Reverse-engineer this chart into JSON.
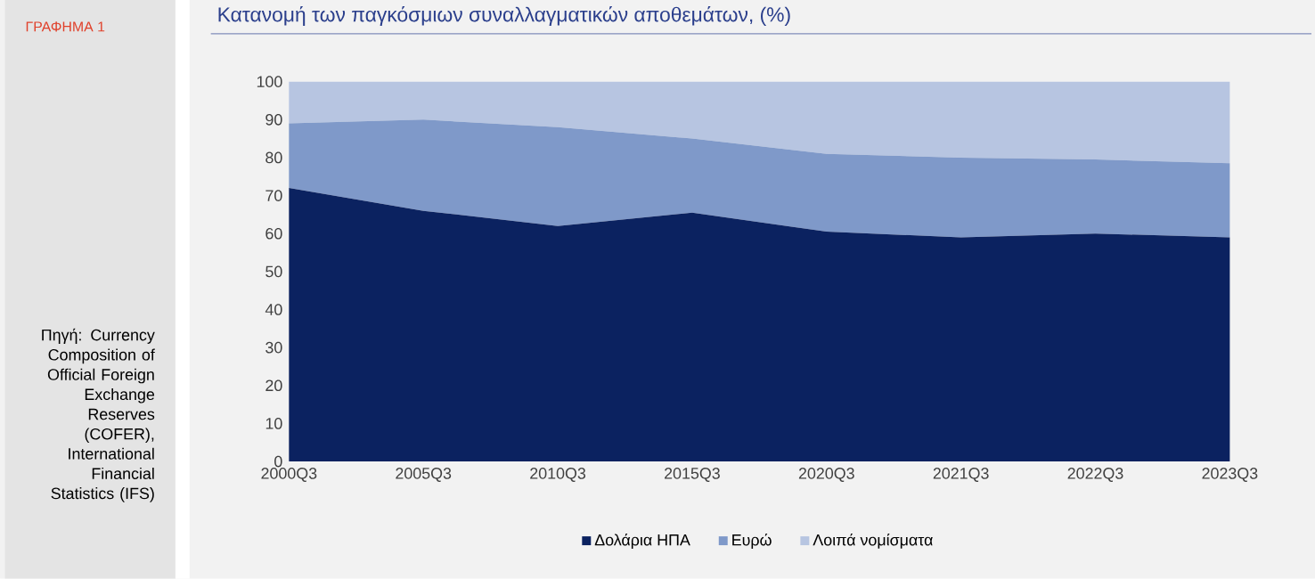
{
  "chart_data": {
    "type": "area",
    "stacked": true,
    "title": "Κατανομή των παγκόσμιων συναλλαγματικών αποθεμάτων, (%)",
    "annotations": [
      "ΓΡΑΦΗΜΑ 1",
      "Πηγή: Currency Composition of Official Foreign Exchange Reserves (COFER), International Financial Statistics (IFS)"
    ],
    "categories": [
      "2000Q3",
      "2005Q3",
      "2010Q3",
      "2015Q3",
      "2020Q3",
      "2021Q3",
      "2022Q3",
      "2023Q3"
    ],
    "series": [
      {
        "name": "Δολάρια ΗΠΑ",
        "color": "#0b2260",
        "values": [
          72,
          66,
          62,
          65.5,
          60.5,
          59,
          60,
          59
        ]
      },
      {
        "name": "Ευρώ",
        "color": "#7f99c9",
        "values": [
          17,
          24,
          26,
          19.5,
          20.5,
          21,
          19.5,
          19.5
        ]
      },
      {
        "name": "Λοιπά νομίσματα",
        "color": "#b7c5e1",
        "values": [
          11,
          10,
          12,
          15,
          19,
          20,
          20.5,
          21.5
        ]
      }
    ],
    "ylim": [
      0,
      100
    ],
    "yticks": [
      0,
      10,
      20,
      30,
      40,
      50,
      60,
      70,
      80,
      90,
      100
    ],
    "grid": false,
    "legend": "bottom"
  }
}
